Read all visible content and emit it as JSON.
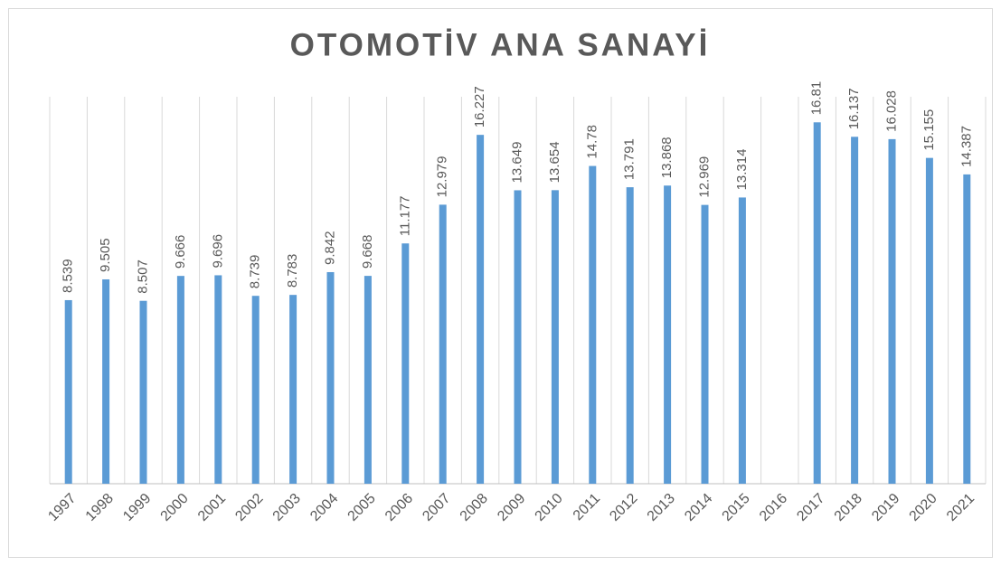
{
  "chart_data": {
    "type": "bar",
    "title": "OTOMOTİV ANA SANAYİ",
    "categories": [
      "1997",
      "1998",
      "1999",
      "2000",
      "2001",
      "2002",
      "2003",
      "2004",
      "2005",
      "2006",
      "2007",
      "2008",
      "2009",
      "2010",
      "2011",
      "2012",
      "2013",
      "2014",
      "2015",
      "2016",
      "2017",
      "2018",
      "2019",
      "2020",
      "2021"
    ],
    "values": [
      8.539,
      9.505,
      8.507,
      9.666,
      9.696,
      8.739,
      8.783,
      9.842,
      9.668,
      11.177,
      12.979,
      16.227,
      13.649,
      13.654,
      14.78,
      13.791,
      13.868,
      12.969,
      13.314,
      null,
      16.81,
      16.137,
      16.028,
      15.155,
      14.387
    ],
    "color": "#5b9bd5",
    "ylim": [
      0,
      18
    ],
    "grid": true
  }
}
